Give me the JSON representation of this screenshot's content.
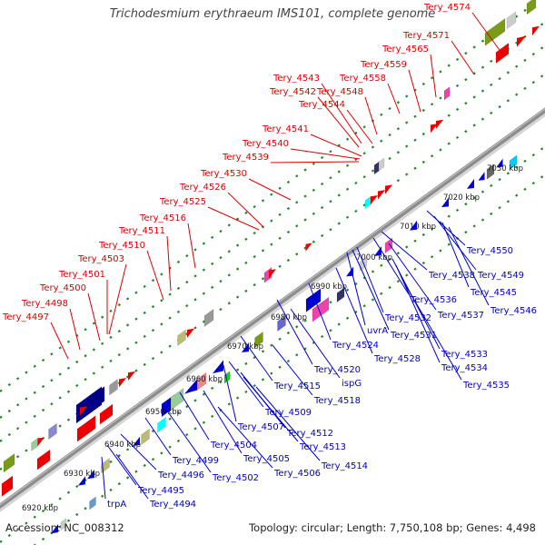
{
  "title": "Trichodesmium erythraeum IMS101, complete genome",
  "accession": "Accession: NC_008312",
  "topology": "Topology: circular; Length: 7,750,108 bp; Genes: 4,498",
  "colors": {
    "top_label": "#dd0000",
    "bottom_label": "#0000cc",
    "backbone": "#999999",
    "tick": "#228822"
  },
  "ruler_ticks": [
    "6920 kbp",
    "6930 kbp",
    "6940 kbp",
    "6950 kbp",
    "6960 kbp",
    "6970 kbp",
    "6980 kbp",
    "6990 kbp",
    "7000 kbp",
    "7010 kbp",
    "7020 kbp",
    "7030 kbp"
  ],
  "top_labels": [
    "Tery_4574",
    "Tery_4571",
    "Tery_4565",
    "Tery_4559",
    "Tery_4558",
    "Tery_4543",
    "Tery_4542",
    "Tery_4548",
    "Tery_4544",
    "Tery_4541",
    "Tery_4540",
    "Tery_4539",
    "Tery_4530",
    "Tery_4526",
    "Tery_4525",
    "Tery_4516",
    "Tery_4511",
    "Tery_4510",
    "Tery_4503",
    "Tery_4501",
    "Tery_4500",
    "Tery_4498",
    "Tery_4497"
  ],
  "bottom_labels": [
    "Tery_4550",
    "Tery_4549",
    "Tery_4538",
    "Tery_4545",
    "Tery_4546",
    "Tery_4536",
    "Tery_4537",
    "Tery_4532",
    "uvrA",
    "Tery_4531",
    "Tery_4524",
    "Tery_4528",
    "Tery_4533",
    "Tery_4534",
    "Tery_4520",
    "Tery_4535",
    "ispG",
    "Tery_4515",
    "Tery_4518",
    "Tery_4509",
    "Tery_4507",
    "Tery_4512",
    "Tery_4513",
    "Tery_4504",
    "Tery_4505",
    "Tery_4514",
    "Tery_4506",
    "Tery_4499",
    "Tery_4502",
    "Tery_4496",
    "Tery_4495",
    "Tery_4494",
    "trpA"
  ]
}
